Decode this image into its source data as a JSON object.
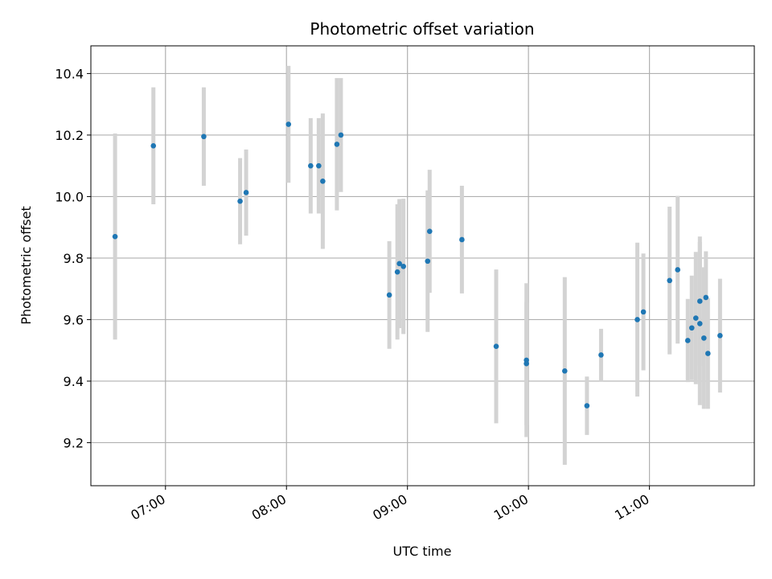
{
  "chart_data": {
    "type": "scatter",
    "title": "Photometric offset variation",
    "xlabel": "UTC time",
    "ylabel": "Photometric offset",
    "xlim": [
      "06:23",
      "11:52"
    ],
    "ylim": [
      9.06,
      10.49
    ],
    "x_ticks": [
      "07:00",
      "08:00",
      "09:00",
      "10:00",
      "11:00"
    ],
    "y_ticks": [
      9.2,
      9.4,
      9.6,
      9.8,
      10.0,
      10.2,
      10.4
    ],
    "grid": true,
    "marker_color": "#1f77b4",
    "errorbar_color": "#d3d3d3",
    "points": [
      {
        "x": "06:35",
        "y": 9.87,
        "err": 0.335
      },
      {
        "x": "06:54",
        "y": 10.165,
        "err": 0.19
      },
      {
        "x": "07:19",
        "y": 10.195,
        "err": 0.16
      },
      {
        "x": "07:37",
        "y": 9.985,
        "err": 0.14
      },
      {
        "x": "07:40",
        "y": 10.013,
        "err": 0.14
      },
      {
        "x": "08:01",
        "y": 10.235,
        "err": 0.19
      },
      {
        "x": "08:12",
        "y": 10.1,
        "err": 0.155
      },
      {
        "x": "08:16",
        "y": 10.1,
        "err": 0.155
      },
      {
        "x": "08:18",
        "y": 10.05,
        "err": 0.22
      },
      {
        "x": "08:25",
        "y": 10.17,
        "err": 0.215
      },
      {
        "x": "08:27",
        "y": 10.2,
        "err": 0.185
      },
      {
        "x": "08:51",
        "y": 9.68,
        "err": 0.175
      },
      {
        "x": "08:55",
        "y": 9.755,
        "err": 0.22
      },
      {
        "x": "08:56",
        "y": 9.782,
        "err": 0.21
      },
      {
        "x": "08:58",
        "y": 9.773,
        "err": 0.22
      },
      {
        "x": "09:10",
        "y": 9.79,
        "err": 0.23
      },
      {
        "x": "09:11",
        "y": 9.887,
        "err": 0.2
      },
      {
        "x": "09:27",
        "y": 9.86,
        "err": 0.175
      },
      {
        "x": "09:44",
        "y": 9.513,
        "err": 0.25
      },
      {
        "x": "09:59",
        "y": 9.457,
        "err": 0.2
      },
      {
        "x": "09:59",
        "y": 9.468,
        "err": 0.25
      },
      {
        "x": "10:18",
        "y": 9.433,
        "err": 0.305
      },
      {
        "x": "10:29",
        "y": 9.32,
        "err": 0.095
      },
      {
        "x": "10:36",
        "y": 9.485,
        "err": 0.085
      },
      {
        "x": "10:54",
        "y": 9.6,
        "err": 0.25
      },
      {
        "x": "10:57",
        "y": 9.625,
        "err": 0.19
      },
      {
        "x": "11:10",
        "y": 9.727,
        "err": 0.24
      },
      {
        "x": "11:14",
        "y": 9.762,
        "err": 0.24
      },
      {
        "x": "11:19",
        "y": 9.532,
        "err": 0.135
      },
      {
        "x": "11:21",
        "y": 9.573,
        "err": 0.17
      },
      {
        "x": "11:23",
        "y": 9.605,
        "err": 0.215
      },
      {
        "x": "11:25",
        "y": 9.66,
        "err": 0.21
      },
      {
        "x": "11:25",
        "y": 9.587,
        "err": 0.265
      },
      {
        "x": "11:27",
        "y": 9.54,
        "err": 0.23
      },
      {
        "x": "11:28",
        "y": 9.672,
        "err": 0.15
      },
      {
        "x": "11:29",
        "y": 9.49,
        "err": 0.18
      },
      {
        "x": "11:35",
        "y": 9.548,
        "err": 0.185
      }
    ]
  }
}
